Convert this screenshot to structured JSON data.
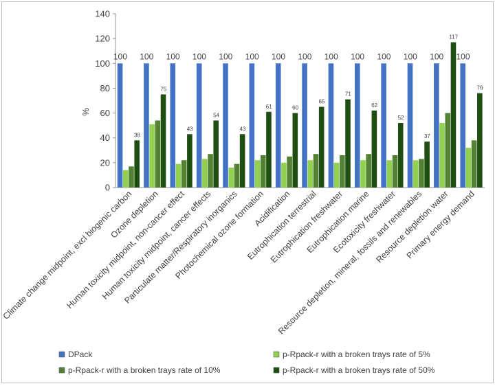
{
  "chart_data": {
    "type": "bar",
    "title": "",
    "xlabel": "",
    "ylabel": "%",
    "ylim": [
      0,
      140
    ],
    "yticks": [
      0,
      20,
      40,
      60,
      80,
      100,
      120,
      140
    ],
    "categories": [
      "Climate change midpoint, excl biogenic carbon",
      "Ozone depletion",
      "Human toxicity midpoint, non-cancer effect",
      "Human toxicity midpoint, cancer effects",
      "Particulate matter/Respiratory inorganics",
      "Photochemical ozone formation",
      "Acidification",
      "Eutrophication terrestrial",
      "Eutrophication freshwater",
      "Eutrophication marine",
      "Ecotoxicity freshwater",
      "Resource depletion, mineral, fossils and renewables",
      "Resource depletion water",
      "Primary energy demand"
    ],
    "series": [
      {
        "name": "DPack",
        "color": "#4472c4",
        "values": [
          100,
          100,
          100,
          100,
          100,
          100,
          100,
          100,
          100,
          100,
          100,
          100,
          100,
          100
        ],
        "labels": [
          "100",
          "100",
          "100",
          "100",
          "100",
          "100",
          "100",
          "100",
          "100",
          "100",
          "100",
          "100",
          "100",
          "100"
        ]
      },
      {
        "name": "p-Rpack-r  with a broken trays rate of 5%",
        "color": "#92d050",
        "values": [
          14,
          51,
          19,
          23,
          16,
          22,
          20,
          22,
          20,
          22,
          22,
          22,
          52,
          32
        ]
      },
      {
        "name": "p-Rpack-r with a broken trays rate of 10%",
        "color": "#548235",
        "values": [
          17,
          54,
          22,
          27,
          19,
          26,
          25,
          27,
          26,
          27,
          26,
          23,
          60,
          38
        ]
      },
      {
        "name": "p-Rpack-r  with a broken trays rate of 50%",
        "color": "#1f4e12",
        "values": [
          38,
          75,
          43,
          54,
          43,
          61,
          60,
          65,
          71,
          62,
          52,
          37,
          117,
          76
        ],
        "labels": [
          "38",
          "75",
          "43",
          "54",
          "43",
          "61",
          "60",
          "65",
          "71",
          "62",
          "52",
          "37",
          "117",
          "76"
        ]
      }
    ],
    "legend_position": "bottom"
  }
}
